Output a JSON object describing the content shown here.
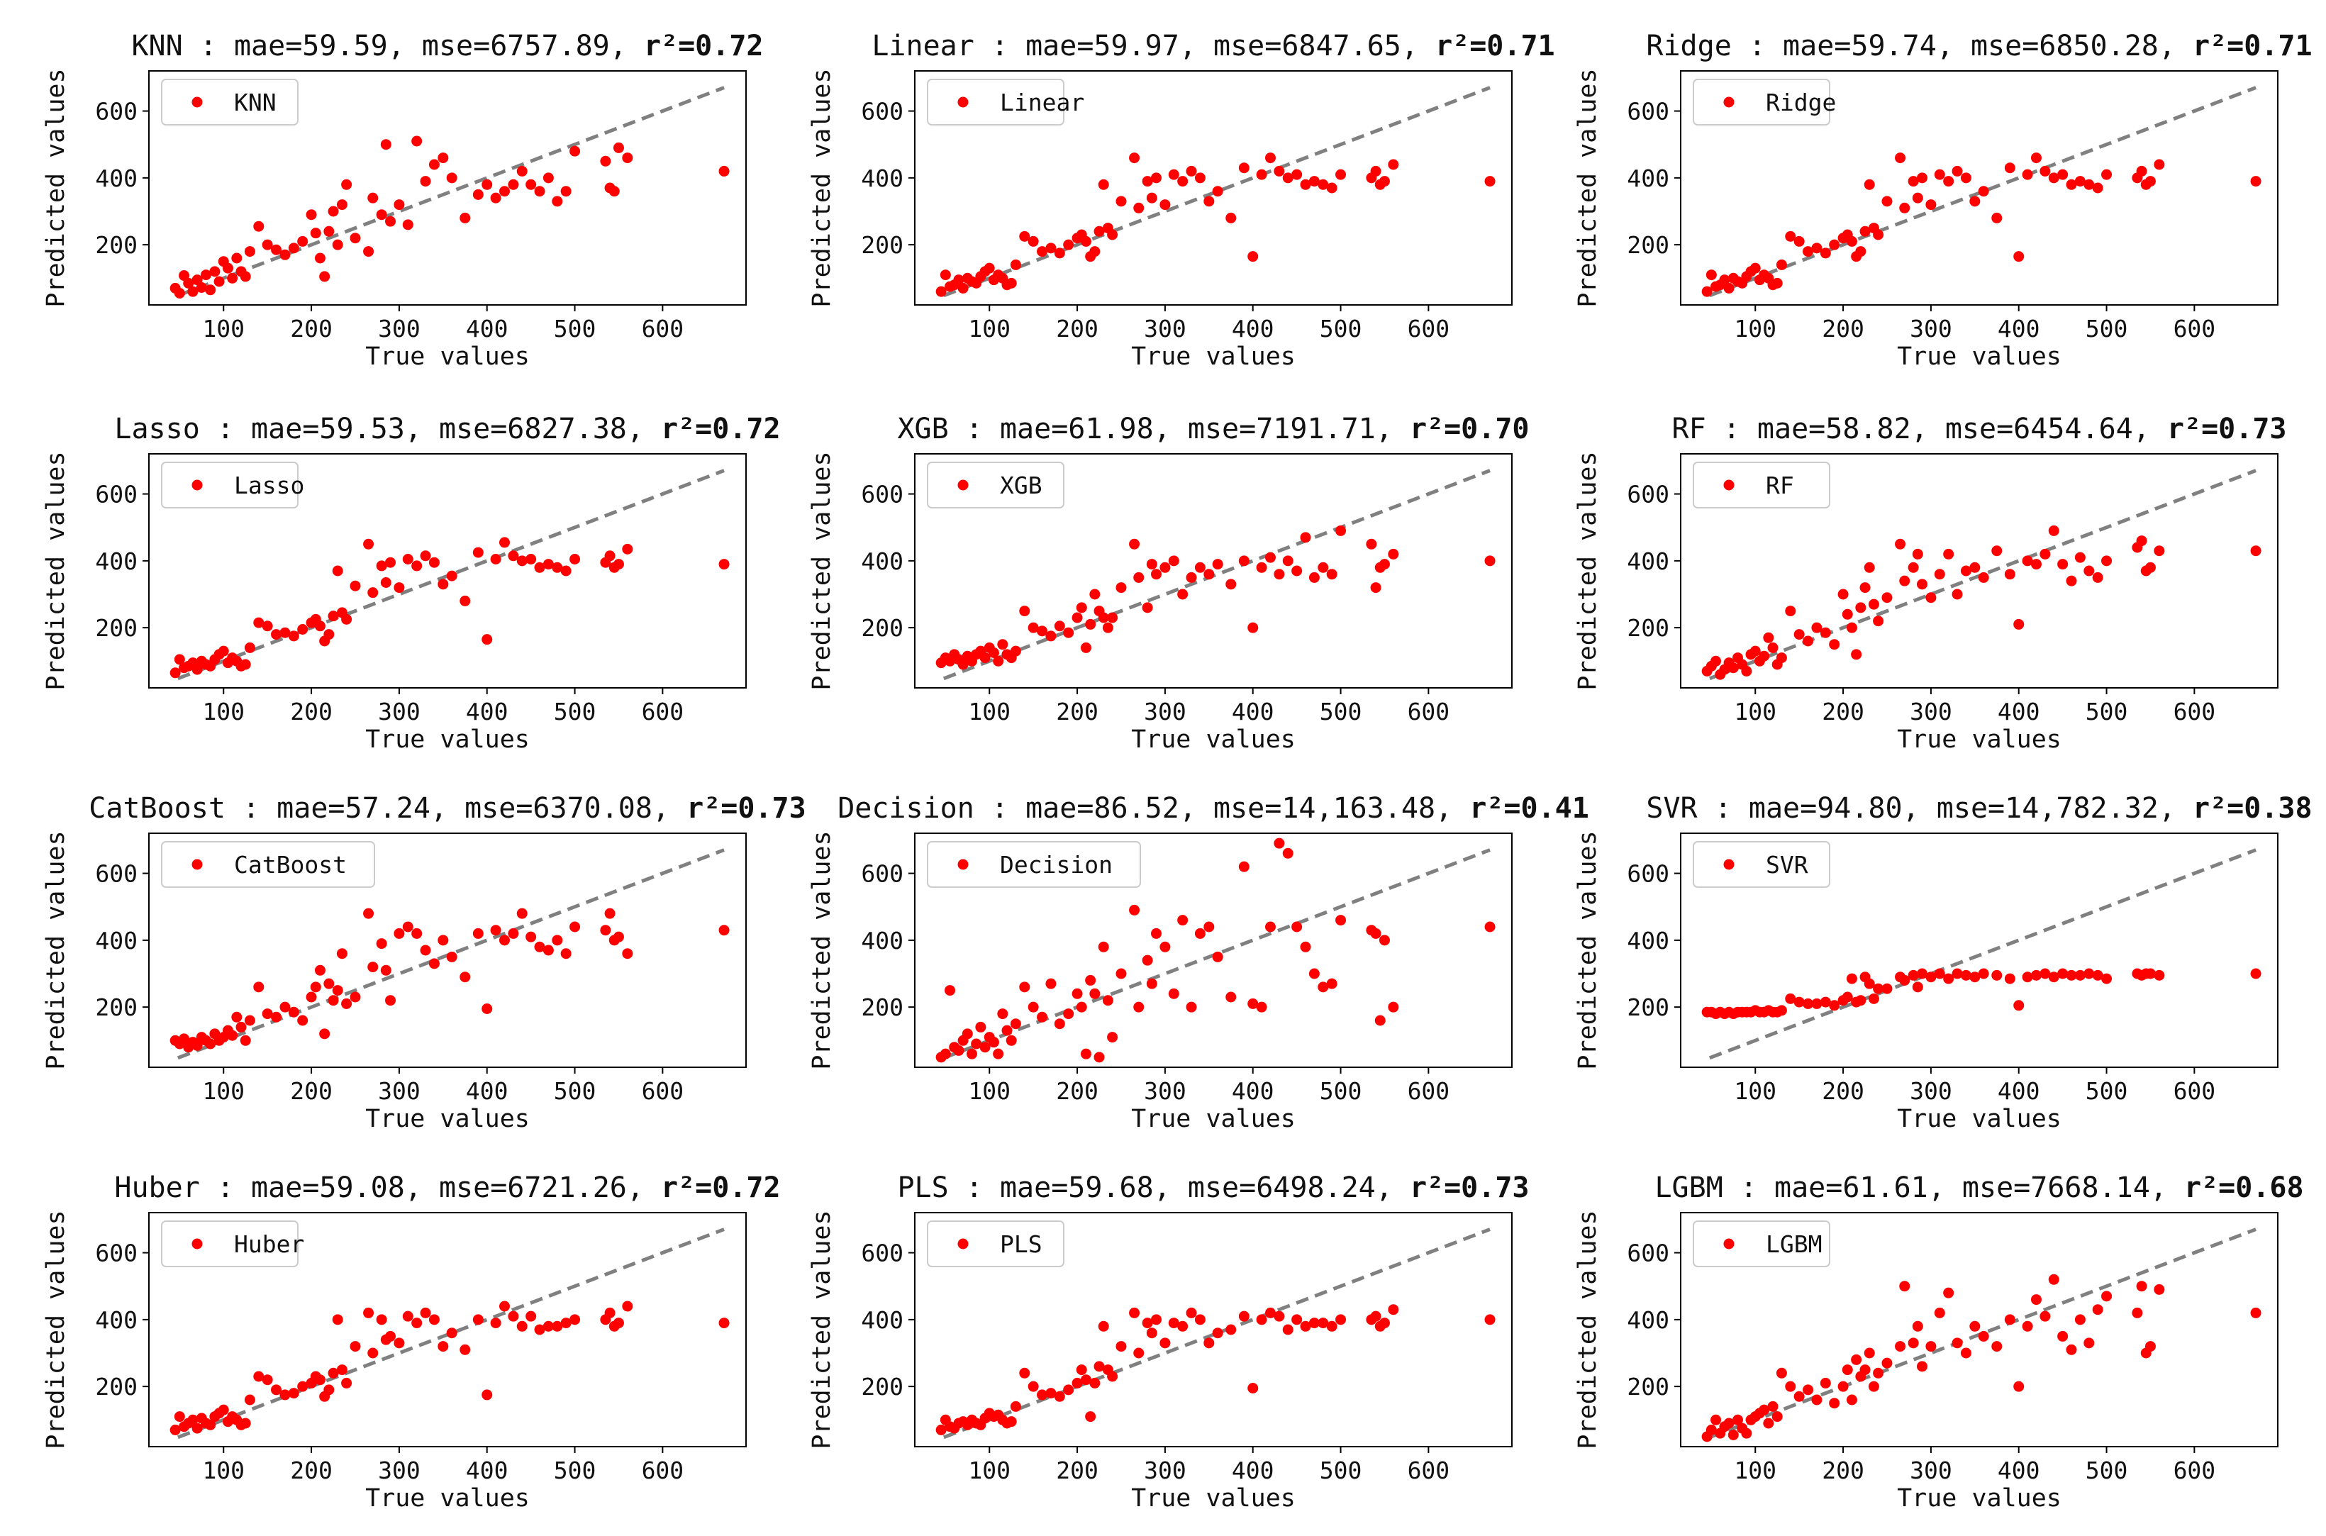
{
  "figure": {
    "x_label": "True values",
    "y_label": "Predicted values",
    "x_ticks": [
      100,
      200,
      300,
      400,
      500,
      600
    ],
    "y_ticks": [
      200,
      400,
      600
    ],
    "xlim": [
      15,
      695
    ],
    "ylim": [
      20,
      720
    ],
    "colors": {
      "points": "#ff0000",
      "reference_line": "#808080",
      "axes": "#000000"
    }
  },
  "true_values": [
    45,
    50,
    55,
    60,
    65,
    70,
    75,
    80,
    85,
    90,
    95,
    100,
    105,
    110,
    115,
    120,
    125,
    130,
    140,
    150,
    160,
    170,
    180,
    190,
    200,
    205,
    210,
    215,
    220,
    225,
    230,
    235,
    240,
    250,
    265,
    270,
    280,
    285,
    290,
    300,
    310,
    320,
    330,
    340,
    350,
    360,
    375,
    390,
    400,
    410,
    420,
    430,
    440,
    450,
    460,
    470,
    480,
    490,
    500,
    535,
    540,
    545,
    550,
    560,
    670
  ],
  "chart_data": [
    {
      "type": "scatter",
      "model": "KNN",
      "title_prefix": "KNN : mae=59.59, mse=6757.89,",
      "r2": "0.72",
      "r2_label": "r²=0.72",
      "legend": "KNN",
      "legend_position": "top-left",
      "reference_line": "y=x",
      "xlim": [
        15,
        695
      ],
      "ylim": [
        20,
        720
      ],
      "y": [
        70,
        55,
        108,
        85,
        60,
        95,
        72,
        110,
        65,
        120,
        90,
        150,
        130,
        100,
        160,
        120,
        105,
        180,
        255,
        200,
        185,
        170,
        190,
        210,
        290,
        235,
        160,
        105,
        240,
        300,
        200,
        320,
        380,
        220,
        180,
        340,
        290,
        500,
        270,
        320,
        260,
        510,
        390,
        440,
        460,
        400,
        280,
        350,
        380,
        340,
        360,
        380,
        420,
        380,
        360,
        400,
        330,
        360,
        480,
        450,
        370,
        360,
        490,
        460,
        420
      ]
    },
    {
      "type": "scatter",
      "model": "Linear",
      "title_prefix": "Linear : mae=59.97, mse=6847.65,",
      "r2": "0.71",
      "r2_label": "r²=0.71",
      "legend": "Linear",
      "legend_position": "top-left",
      "reference_line": "y=x",
      "xlim": [
        15,
        695
      ],
      "ylim": [
        20,
        720
      ],
      "y": [
        60,
        110,
        75,
        80,
        95,
        70,
        100,
        90,
        85,
        105,
        120,
        130,
        95,
        110,
        100,
        80,
        85,
        140,
        225,
        210,
        180,
        190,
        175,
        200,
        220,
        230,
        210,
        165,
        180,
        240,
        380,
        250,
        230,
        330,
        460,
        310,
        390,
        340,
        400,
        320,
        410,
        390,
        420,
        400,
        330,
        360,
        280,
        430,
        165,
        410,
        460,
        420,
        400,
        410,
        380,
        390,
        380,
        370,
        410,
        400,
        420,
        380,
        390,
        440,
        390
      ]
    },
    {
      "type": "scatter",
      "model": "Ridge",
      "title_prefix": "Ridge : mae=59.74, mse=6850.28,",
      "r2": "0.71",
      "r2_label": "r²=0.71",
      "legend": "Ridge",
      "legend_position": "top-left",
      "reference_line": "y=x",
      "xlim": [
        15,
        695
      ],
      "ylim": [
        20,
        720
      ],
      "y": [
        60,
        110,
        75,
        80,
        95,
        70,
        100,
        90,
        85,
        105,
        120,
        130,
        95,
        110,
        100,
        80,
        85,
        140,
        225,
        210,
        180,
        190,
        175,
        200,
        220,
        230,
        210,
        165,
        180,
        240,
        380,
        250,
        230,
        330,
        460,
        310,
        390,
        340,
        400,
        320,
        410,
        390,
        420,
        400,
        330,
        360,
        280,
        430,
        165,
        410,
        460,
        420,
        400,
        410,
        380,
        390,
        380,
        370,
        410,
        400,
        420,
        380,
        390,
        440,
        390
      ]
    },
    {
      "type": "scatter",
      "model": "Lasso",
      "title_prefix": "Lasso : mae=59.53, mse=6827.38,",
      "r2": "0.72",
      "r2_label": "r²=0.72",
      "legend": "Lasso",
      "legend_position": "top-left",
      "reference_line": "y=x",
      "xlim": [
        15,
        695
      ],
      "ylim": [
        20,
        720
      ],
      "y": [
        65,
        105,
        80,
        85,
        95,
        75,
        100,
        90,
        85,
        105,
        120,
        130,
        95,
        110,
        100,
        85,
        90,
        140,
        215,
        205,
        180,
        185,
        175,
        195,
        215,
        225,
        205,
        160,
        180,
        235,
        370,
        245,
        225,
        325,
        450,
        305,
        385,
        335,
        395,
        320,
        405,
        385,
        415,
        395,
        330,
        355,
        280,
        425,
        165,
        405,
        455,
        415,
        400,
        405,
        380,
        390,
        380,
        370,
        405,
        395,
        415,
        380,
        390,
        435,
        390
      ]
    },
    {
      "type": "scatter",
      "model": "XGB",
      "title_prefix": "XGB : mae=61.98, mse=7191.71,",
      "r2": "0.70",
      "r2_label": "r²=0.70",
      "legend": "XGB",
      "legend_position": "top-left",
      "reference_line": "y=x",
      "xlim": [
        15,
        695
      ],
      "ylim": [
        20,
        720
      ],
      "y": [
        95,
        110,
        100,
        120,
        105,
        90,
        115,
        100,
        120,
        130,
        110,
        140,
        125,
        100,
        150,
        120,
        110,
        130,
        250,
        200,
        190,
        175,
        205,
        185,
        230,
        260,
        140,
        210,
        300,
        250,
        230,
        200,
        230,
        320,
        450,
        350,
        260,
        390,
        360,
        380,
        400,
        300,
        350,
        380,
        360,
        390,
        330,
        400,
        200,
        380,
        410,
        360,
        400,
        370,
        470,
        350,
        380,
        360,
        490,
        450,
        320,
        380,
        390,
        420,
        400
      ]
    },
    {
      "type": "scatter",
      "model": "RF",
      "title_prefix": "RF : mae=58.82, mse=6454.64,",
      "r2": "0.73",
      "r2_label": "r²=0.73",
      "legend": "RF",
      "legend_position": "top-left",
      "reference_line": "y=x",
      "xlim": [
        15,
        695
      ],
      "ylim": [
        20,
        720
      ],
      "y": [
        70,
        85,
        100,
        60,
        75,
        95,
        80,
        110,
        90,
        70,
        120,
        130,
        100,
        115,
        170,
        140,
        90,
        110,
        250,
        180,
        160,
        200,
        185,
        150,
        300,
        240,
        200,
        120,
        260,
        320,
        380,
        270,
        220,
        290,
        450,
        340,
        380,
        420,
        330,
        290,
        360,
        420,
        300,
        370,
        380,
        350,
        430,
        360,
        210,
        400,
        390,
        420,
        490,
        390,
        340,
        410,
        370,
        350,
        400,
        440,
        460,
        370,
        380,
        430,
        430
      ]
    },
    {
      "type": "scatter",
      "model": "CatBoost",
      "title_prefix": "CatBoost : mae=57.24, mse=6370.08,",
      "r2": "0.73",
      "r2_label": "r²=0.73",
      "legend": "CatBoost",
      "legend_position": "top-left",
      "reference_line": "y=x",
      "xlim": [
        15,
        695
      ],
      "ylim": [
        20,
        720
      ],
      "y": [
        100,
        90,
        105,
        80,
        95,
        85,
        110,
        100,
        90,
        120,
        100,
        110,
        130,
        115,
        170,
        140,
        100,
        160,
        260,
        180,
        170,
        200,
        185,
        160,
        230,
        260,
        310,
        120,
        270,
        220,
        250,
        360,
        210,
        230,
        480,
        320,
        390,
        310,
        220,
        420,
        440,
        420,
        370,
        330,
        400,
        350,
        290,
        420,
        195,
        430,
        400,
        420,
        480,
        410,
        380,
        370,
        400,
        360,
        440,
        430,
        480,
        400,
        410,
        360,
        430
      ]
    },
    {
      "type": "scatter",
      "model": "Decision",
      "title_prefix": "Decision : mae=86.52, mse=14,163.48,",
      "r2": "0.41",
      "r2_label": "r²=0.41",
      "legend": "Decision",
      "legend_position": "top-left",
      "reference_line": "y=x",
      "xlim": [
        15,
        695
      ],
      "ylim": [
        20,
        720
      ],
      "y": [
        50,
        60,
        250,
        80,
        70,
        100,
        120,
        60,
        90,
        140,
        80,
        110,
        95,
        60,
        180,
        130,
        100,
        150,
        260,
        200,
        170,
        270,
        150,
        180,
        240,
        200,
        60,
        280,
        240,
        50,
        380,
        220,
        110,
        300,
        490,
        200,
        340,
        270,
        420,
        380,
        240,
        460,
        200,
        420,
        440,
        350,
        230,
        620,
        210,
        200,
        440,
        690,
        660,
        440,
        380,
        300,
        260,
        270,
        460,
        430,
        420,
        160,
        400,
        200,
        440
      ]
    },
    {
      "type": "scatter",
      "model": "SVR",
      "title_prefix": "SVR : mae=94.80, mse=14,782.32,",
      "r2": "0.38",
      "r2_label": "r²=0.38",
      "legend": "SVR",
      "legend_position": "top-left",
      "reference_line": "y=x",
      "xlim": [
        15,
        695
      ],
      "ylim": [
        20,
        720
      ],
      "y": [
        185,
        185,
        180,
        185,
        180,
        185,
        180,
        185,
        185,
        185,
        185,
        190,
        185,
        185,
        190,
        185,
        185,
        190,
        225,
        215,
        210,
        210,
        215,
        205,
        220,
        230,
        285,
        215,
        220,
        290,
        270,
        225,
        255,
        255,
        290,
        280,
        295,
        260,
        300,
        290,
        300,
        285,
        300,
        295,
        290,
        300,
        295,
        285,
        205,
        290,
        295,
        300,
        290,
        300,
        295,
        295,
        300,
        295,
        285,
        300,
        295,
        300,
        300,
        295,
        300
      ]
    },
    {
      "type": "scatter",
      "model": "Huber",
      "title_prefix": "Huber : mae=59.08, mse=6721.26,",
      "r2": "0.72",
      "r2_label": "r²=0.72",
      "legend": "Huber",
      "legend_position": "top-left",
      "reference_line": "y=x",
      "xlim": [
        15,
        695
      ],
      "ylim": [
        20,
        720
      ],
      "y": [
        70,
        110,
        80,
        90,
        100,
        75,
        105,
        90,
        85,
        110,
        120,
        130,
        95,
        110,
        100,
        85,
        90,
        160,
        230,
        220,
        190,
        175,
        180,
        200,
        210,
        230,
        220,
        170,
        190,
        240,
        400,
        250,
        210,
        320,
        420,
        300,
        400,
        340,
        350,
        330,
        410,
        390,
        420,
        400,
        320,
        360,
        310,
        400,
        175,
        390,
        440,
        410,
        380,
        410,
        370,
        380,
        380,
        390,
        400,
        400,
        420,
        380,
        390,
        440,
        390
      ]
    },
    {
      "type": "scatter",
      "model": "PLS",
      "title_prefix": "PLS : mae=59.68, mse=6498.24,",
      "r2": "0.73",
      "r2_label": "r²=0.73",
      "legend": "PLS",
      "legend_position": "top-left",
      "reference_line": "y=x",
      "xlim": [
        15,
        695
      ],
      "ylim": [
        20,
        720
      ],
      "y": [
        70,
        100,
        80,
        75,
        90,
        95,
        85,
        100,
        90,
        85,
        105,
        120,
        110,
        115,
        100,
        90,
        95,
        140,
        240,
        200,
        175,
        180,
        170,
        190,
        210,
        250,
        220,
        110,
        210,
        260,
        380,
        250,
        230,
        320,
        420,
        300,
        390,
        360,
        400,
        330,
        390,
        380,
        420,
        400,
        330,
        360,
        370,
        410,
        195,
        400,
        420,
        410,
        370,
        400,
        380,
        390,
        390,
        380,
        400,
        400,
        410,
        380,
        390,
        430,
        400
      ]
    },
    {
      "type": "scatter",
      "model": "LGBM",
      "title_prefix": "LGBM : mae=61.61, mse=7668.14,",
      "r2": "0.68",
      "r2_label": "r²=0.68",
      "legend": "LGBM",
      "legend_position": "top-left",
      "reference_line": "y=x",
      "xlim": [
        15,
        695
      ],
      "ylim": [
        20,
        720
      ],
      "y": [
        50,
        70,
        100,
        60,
        80,
        90,
        55,
        100,
        75,
        60,
        100,
        110,
        120,
        130,
        90,
        140,
        110,
        240,
        200,
        170,
        190,
        160,
        210,
        150,
        200,
        250,
        160,
        280,
        230,
        250,
        300,
        200,
        240,
        270,
        320,
        500,
        330,
        380,
        260,
        320,
        420,
        480,
        330,
        300,
        380,
        350,
        320,
        400,
        200,
        380,
        460,
        410,
        520,
        350,
        310,
        400,
        330,
        430,
        470,
        420,
        500,
        300,
        320,
        490,
        420
      ]
    }
  ]
}
